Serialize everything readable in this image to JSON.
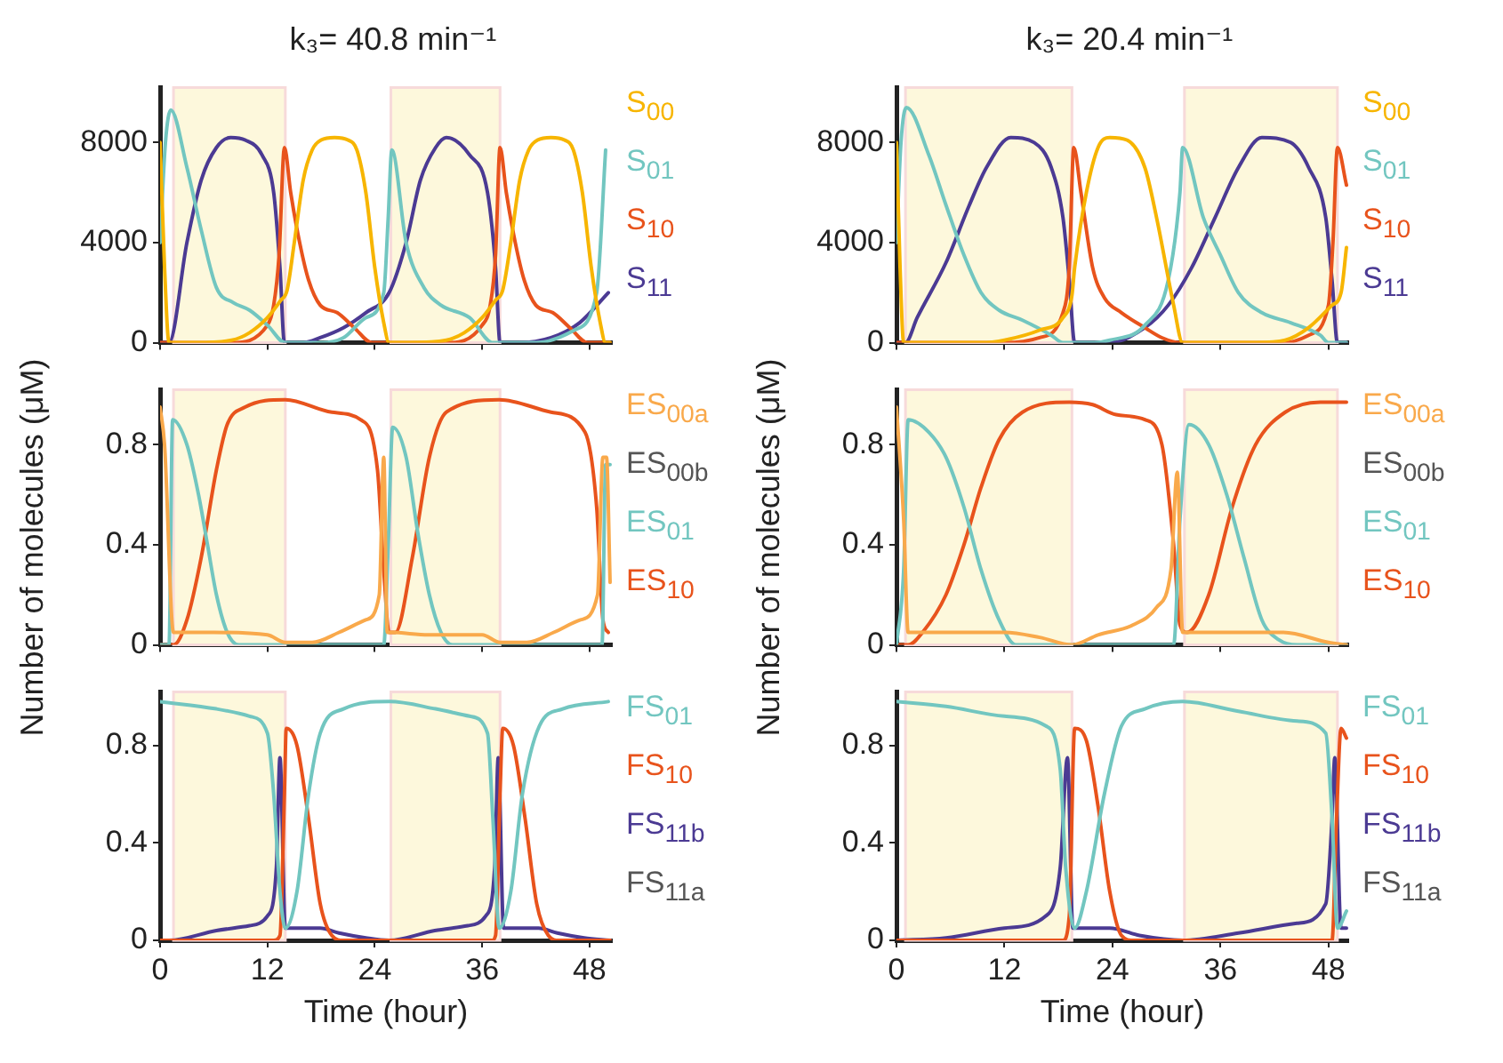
{
  "chart_data": [
    {
      "type": "line",
      "title": "k₃= 40.8 min⁻¹",
      "xlim": [
        0,
        50.5
      ],
      "xticks": [
        0,
        12,
        24,
        36,
        48
      ],
      "ylim": [
        0,
        10200
      ],
      "yticks": [
        0,
        4000,
        8000
      ],
      "tick_labels": "y",
      "grid": false,
      "legend": "right",
      "marker": "none",
      "bands": [
        {
          "axis": "x",
          "from": 1.5,
          "to": 14,
          "color": "#fdf8dc"
        },
        {
          "axis": "x",
          "from": 25.8,
          "to": 38,
          "color": "#fdf8dc"
        }
      ],
      "series": [
        {
          "name": "S$_{00}$",
          "color": "#f7b500",
          "x": [
            0,
            0.5,
            1,
            4,
            8,
            10,
            12,
            13.5,
            14.2,
            15,
            16,
            17,
            18,
            19.5,
            21,
            22,
            23,
            24,
            25,
            25.6,
            28,
            32,
            34,
            36,
            37.5,
            38.3,
            39.2,
            40.2,
            41.2,
            42.2,
            43.7,
            45.2,
            46.2,
            47.2,
            48.2,
            49.2,
            49.8,
            50.3
          ],
          "values": [
            8000,
            3000,
            0,
            0,
            100,
            400,
            1000,
            1700,
            2100,
            4000,
            6500,
            7700,
            8100,
            8200,
            8100,
            7700,
            6000,
            3000,
            800,
            0,
            0,
            100,
            400,
            1000,
            1700,
            2100,
            4000,
            6500,
            7700,
            8100,
            8200,
            8100,
            7700,
            6000,
            3000,
            800,
            0,
            0
          ]
        },
        {
          "name": "S$_{01}$",
          "color": "#72c6c0",
          "x": [
            0,
            0.6,
            1.2,
            3,
            4.6,
            6.3,
            8.2,
            10,
            12,
            14,
            18,
            20.5,
            23,
            25,
            25.5,
            25.9,
            27.5,
            29.5,
            31.4,
            34.6,
            37.2,
            42,
            46.3,
            48.8,
            49.8
          ],
          "values": [
            4000,
            8000,
            9300,
            7000,
            4500,
            2200,
            1600,
            1300,
            700,
            0,
            0,
            200,
            1000,
            2000,
            5000,
            7700,
            4000,
            2200,
            1500,
            1000,
            0,
            0,
            500,
            2000,
            7700
          ]
        },
        {
          "name": "S$_{10}$",
          "color": "#e8531c",
          "x": [
            0,
            8,
            12,
            12.7,
            13.3,
            13.9,
            14.6,
            15.6,
            16.6,
            17.9,
            19.8,
            21.7,
            23.7,
            32,
            36,
            36.9,
            37.5,
            38,
            38.7,
            39.7,
            40.7,
            42,
            43.9,
            45.8,
            47.8,
            50.3
          ],
          "values": [
            0,
            0,
            700,
            1500,
            3500,
            7800,
            6000,
            4000,
            2500,
            1500,
            1200,
            600,
            0,
            0,
            700,
            1500,
            3500,
            7800,
            6000,
            4000,
            2500,
            1500,
            1200,
            600,
            0,
            0
          ]
        },
        {
          "name": "S$_{11}$",
          "color": "#4b3a93",
          "x": [
            0,
            1,
            3,
            4.6,
            6.3,
            7.9,
            9.5,
            11.4,
            12.7,
            13.4,
            13.9,
            16,
            17.9,
            20.5,
            23,
            25.6,
            27.5,
            29.1,
            30.8,
            32,
            34.6,
            36.6,
            37.5,
            38,
            40,
            43.7,
            46.9,
            50.1
          ],
          "values": [
            0,
            0,
            4000,
            6500,
            7800,
            8200,
            8100,
            7500,
            6000,
            3000,
            0,
            0,
            200,
            600,
            1200,
            2000,
            4000,
            6500,
            7800,
            8200,
            7500,
            6000,
            3000,
            0,
            0,
            200,
            800,
            2000
          ]
        }
      ]
    },
    {
      "type": "line",
      "ylabel": "Number of molecules  (μM)",
      "xlim": [
        0,
        50.5
      ],
      "xticks": [
        0,
        12,
        24,
        36,
        48
      ],
      "ylim": [
        0,
        1.02
      ],
      "yticks": [
        0,
        0.4,
        0.8
      ],
      "tick_labels": "y",
      "grid": false,
      "legend": "right",
      "marker": "none",
      "bands": [
        {
          "axis": "x",
          "from": 1.5,
          "to": 14,
          "color": "#fdf8dc"
        },
        {
          "axis": "x",
          "from": 25.8,
          "to": 38,
          "color": "#fdf8dc"
        }
      ],
      "series": [
        {
          "name": "ES$_{00a}$",
          "color": "#f9a94b",
          "x": [
            0,
            0.5,
            1.5,
            6,
            12,
            14,
            17,
            20,
            23,
            24.5,
            25,
            25.4,
            25.8,
            30,
            36,
            38,
            41,
            44,
            47,
            48.9,
            49.5,
            49.9,
            50.3
          ],
          "values": [
            0.95,
            0.8,
            0.05,
            0.05,
            0.04,
            0.01,
            0.01,
            0.05,
            0.1,
            0.2,
            0.75,
            0.05,
            0.05,
            0.04,
            0.04,
            0.01,
            0.01,
            0.05,
            0.1,
            0.2,
            0.75,
            0.75,
            0.25
          ]
        },
        {
          "name": "ES$_{00b}$",
          "color": "#555555"
        },
        {
          "name": "ES$_{01}$",
          "color": "#72c6c0",
          "x": [
            0,
            1,
            1.4,
            3,
            4.3,
            5.3,
            6.3,
            7.5,
            8.8,
            25,
            25.5,
            26,
            27.5,
            28.8,
            30.1,
            31.4,
            32.7,
            49.4,
            49.8,
            50.3
          ],
          "values": [
            0,
            0,
            0.9,
            0.8,
            0.6,
            0.4,
            0.2,
            0.05,
            0,
            0,
            0.4,
            0.87,
            0.75,
            0.45,
            0.2,
            0.05,
            0,
            0,
            0.72,
            0.72
          ]
        },
        {
          "name": "ES$_{10}$",
          "color": "#e8531c",
          "x": [
            0,
            1.5,
            3,
            4.6,
            6.3,
            7.5,
            9.5,
            14,
            19.2,
            22.4,
            24.3,
            25,
            25.6,
            26.3,
            28.2,
            30.1,
            32,
            37.9,
            43.7,
            47.5,
            48.8,
            49.5,
            50.1
          ],
          "values": [
            0,
            0,
            0.1,
            0.35,
            0.7,
            0.88,
            0.95,
            0.98,
            0.93,
            0.9,
            0.7,
            0.3,
            0.05,
            0.05,
            0.35,
            0.75,
            0.93,
            0.98,
            0.93,
            0.85,
            0.55,
            0.1,
            0.05
          ]
        }
      ]
    },
    {
      "type": "line",
      "xlabel": "Time (hour)",
      "xlim": [
        0,
        50.5
      ],
      "xticks": [
        0,
        12,
        24,
        36,
        48
      ],
      "ylim": [
        0,
        1.02
      ],
      "yticks": [
        0,
        0.4,
        0.8
      ],
      "grid": false,
      "legend": "right",
      "marker": "none",
      "bands": [
        {
          "axis": "x",
          "from": 1.5,
          "to": 14,
          "color": "#fdf8dc"
        },
        {
          "axis": "x",
          "from": 25.8,
          "to": 38,
          "color": "#fdf8dc"
        }
      ],
      "series": [
        {
          "name": "FS$_{01}$",
          "color": "#72c6c0",
          "x": [
            0,
            6.3,
            10,
            12,
            12.7,
            13.4,
            14,
            15.3,
            16.6,
            17.9,
            20.5,
            25.6,
            30.8,
            34.6,
            36.6,
            37.2,
            37.9,
            39.2,
            40.5,
            42.4,
            45,
            50.1
          ],
          "values": [
            0.98,
            0.95,
            0.92,
            0.85,
            0.6,
            0.2,
            0.05,
            0.2,
            0.6,
            0.85,
            0.95,
            0.98,
            0.95,
            0.92,
            0.85,
            0.5,
            0.05,
            0.2,
            0.6,
            0.88,
            0.95,
            0.98
          ]
        },
        {
          "name": "FS$_{10}$",
          "color": "#e8531c",
          "x": [
            0,
            12.7,
            13.4,
            13.9,
            14.1,
            15.3,
            16.6,
            17.9,
            19.2,
            20.5,
            37.1,
            37.5,
            38,
            38.3,
            39.5,
            40.8,
            42.1,
            43.4,
            44.6,
            50.3
          ],
          "values": [
            0,
            0,
            0.02,
            0.6,
            0.87,
            0.8,
            0.5,
            0.15,
            0.02,
            0,
            0,
            0.02,
            0.6,
            0.87,
            0.8,
            0.5,
            0.15,
            0.02,
            0,
            0
          ]
        },
        {
          "name": "FS$_{11b}$",
          "color": "#4b3a93",
          "x": [
            0,
            1,
            6.3,
            10,
            12,
            13,
            13.4,
            14,
            17.9,
            20,
            23,
            25.6,
            30.7,
            34.4,
            36.4,
            37.4,
            37.8,
            38.4,
            42.3,
            44.4,
            47.4,
            50.3
          ],
          "values": [
            0,
            0,
            0.04,
            0.06,
            0.1,
            0.3,
            0.75,
            0.05,
            0.05,
            0.03,
            0.01,
            0,
            0.04,
            0.06,
            0.1,
            0.3,
            0.75,
            0.05,
            0.05,
            0.03,
            0.01,
            0
          ]
        },
        {
          "name": "FS$_{11a}$",
          "color": "#555555"
        }
      ]
    },
    {
      "type": "line",
      "title": "k₃= 20.4 min⁻¹",
      "xlim": [
        0,
        50.2
      ],
      "xticks": [
        0,
        12,
        24,
        36,
        48
      ],
      "ylim": [
        0,
        10200
      ],
      "yticks": [
        0,
        4000,
        8000
      ],
      "tick_labels": "y",
      "grid": false,
      "legend": "right",
      "marker": "none",
      "bands": [
        {
          "axis": "x",
          "from": 1,
          "to": 19.5,
          "color": "#fdf8dc"
        },
        {
          "axis": "x",
          "from": 32,
          "to": 49,
          "color": "#fdf8dc"
        }
      ],
      "series": [
        {
          "name": "S$_{00}$",
          "color": "#f7b500",
          "x": [
            0,
            0.4,
            0.8,
            10,
            12,
            15.9,
            18.5,
            19.5,
            19.8,
            21.1,
            22.4,
            23.7,
            25.6,
            27.6,
            28.9,
            30.8,
            31.8,
            40,
            43.2,
            45.8,
            48.4,
            49.4,
            50
          ],
          "values": [
            8000,
            3000,
            0,
            0,
            100,
            500,
            1000,
            1900,
            3000,
            6000,
            7800,
            8200,
            8100,
            7000,
            5000,
            1500,
            0,
            0,
            100,
            600,
            1500,
            2000,
            3800
          ]
        },
        {
          "name": "S$_{01}$",
          "color": "#72c6c0",
          "x": [
            0,
            0.5,
            1.1,
            3.6,
            5.5,
            7.5,
            9.4,
            11.4,
            14,
            17.2,
            18.5,
            22,
            23.7,
            27.6,
            30.2,
            31.5,
            31.8,
            34.1,
            36,
            38,
            40.6,
            43.8,
            47.1,
            48,
            50
          ],
          "values": [
            4000,
            8000,
            9400,
            7500,
            5500,
            3500,
            2000,
            1300,
            900,
            300,
            0,
            0,
            100,
            700,
            2500,
            6000,
            7800,
            5000,
            3500,
            2000,
            1200,
            800,
            300,
            0,
            0
          ]
        },
        {
          "name": "S$_{10}$",
          "color": "#e8531c",
          "x": [
            0,
            12,
            15.9,
            18.5,
            19.2,
            19.7,
            20.5,
            21.8,
            23.1,
            25,
            27.6,
            29.5,
            31.5,
            43,
            45.8,
            48,
            48.5,
            49,
            50
          ],
          "values": [
            0,
            0,
            200,
            1200,
            3000,
            7800,
            6000,
            3000,
            1800,
            1200,
            600,
            200,
            0,
            0,
            300,
            1500,
            4000,
            7800,
            6300
          ]
        },
        {
          "name": "S$_{11}$",
          "color": "#4b3a93",
          "x": [
            0,
            1,
            2.3,
            5.5,
            8.1,
            10,
            12.7,
            15.3,
            17.2,
            18.5,
            19.2,
            19.8,
            23.7,
            27.6,
            30.2,
            32.8,
            35.4,
            38,
            40.6,
            43.8,
            45.8,
            47.7,
            48.4,
            49,
            50
          ],
          "values": [
            0,
            0,
            1000,
            3200,
            5500,
            7000,
            8200,
            8000,
            7000,
            5000,
            2500,
            0,
            0,
            600,
            1500,
            3000,
            5000,
            7000,
            8200,
            8000,
            7000,
            5000,
            2500,
            0,
            0
          ]
        }
      ]
    },
    {
      "type": "line",
      "ylabel": "Number of molecules  (μM)",
      "xlim": [
        0,
        50.2
      ],
      "xticks": [
        0,
        12,
        24,
        36,
        48
      ],
      "ylim": [
        0,
        1.02
      ],
      "yticks": [
        0,
        0.4,
        0.8
      ],
      "tick_labels": "y",
      "grid": false,
      "legend": "right",
      "marker": "none",
      "bands": [
        {
          "axis": "x",
          "from": 1,
          "to": 19.5,
          "color": "#fdf8dc"
        },
        {
          "axis": "x",
          "from": 32,
          "to": 49,
          "color": "#fdf8dc"
        }
      ],
      "series": [
        {
          "name": "ES$_{00a}$",
          "color": "#f9a94b",
          "x": [
            0,
            0.8,
            1.3,
            12,
            15.9,
            19.5,
            22.4,
            26.3,
            28.9,
            30.5,
            31.2,
            31.8,
            43,
            48,
            50
          ],
          "values": [
            0.95,
            0.5,
            0.05,
            0.05,
            0.03,
            0,
            0.04,
            0.08,
            0.15,
            0.3,
            0.69,
            0.05,
            0.05,
            0.01,
            0
          ]
        },
        {
          "name": "ES$_{00b}$",
          "color": "#555555"
        },
        {
          "name": "ES$_{01}$",
          "color": "#72c6c0",
          "x": [
            0,
            0.8,
            1.3,
            3.6,
            5.5,
            7.5,
            9.4,
            11.4,
            13.3,
            30.8,
            31.5,
            32.5,
            34.7,
            36.7,
            38.6,
            40.6,
            42.5,
            44.5,
            50
          ],
          "values": [
            0,
            0.3,
            0.9,
            0.85,
            0.75,
            0.55,
            0.3,
            0.1,
            0,
            0,
            0.5,
            0.88,
            0.8,
            0.6,
            0.35,
            0.1,
            0.02,
            0,
            0
          ]
        },
        {
          "name": "ES$_{10}$",
          "color": "#e8531c",
          "x": [
            0,
            1.3,
            2.9,
            5.5,
            7.5,
            9.4,
            11.4,
            14,
            19.2,
            21.8,
            24.4,
            27.6,
            29.5,
            30.8,
            31.5,
            32.3,
            34.7,
            37.3,
            39.9,
            43.2,
            47.1,
            50
          ],
          "values": [
            0,
            0,
            0.05,
            0.2,
            0.4,
            0.63,
            0.82,
            0.93,
            0.97,
            0.96,
            0.92,
            0.9,
            0.8,
            0.4,
            0.08,
            0.05,
            0.2,
            0.55,
            0.8,
            0.93,
            0.97,
            0.97
          ]
        }
      ]
    },
    {
      "type": "line",
      "xlabel": "Time (hour)",
      "xlim": [
        0,
        50.2
      ],
      "xticks": [
        0,
        12,
        24,
        36,
        48
      ],
      "ylim": [
        0,
        1.02
      ],
      "yticks": [
        0,
        0.4,
        0.8
      ],
      "grid": false,
      "legend": "right",
      "marker": "none",
      "bands": [
        {
          "axis": "x",
          "from": 1,
          "to": 19.5,
          "color": "#fdf8dc"
        },
        {
          "axis": "x",
          "from": 32,
          "to": 49,
          "color": "#fdf8dc"
        }
      ],
      "series": [
        {
          "name": "FS$_{01}$",
          "color": "#72c6c0",
          "x": [
            0,
            5.5,
            12,
            16.6,
            18.2,
            18.8,
            19.8,
            21.1,
            23.1,
            25,
            27.6,
            31.8,
            38,
            44.5,
            47.7,
            48.4,
            49,
            50
          ],
          "values": [
            0.98,
            0.96,
            0.92,
            0.88,
            0.7,
            0.3,
            0.05,
            0.2,
            0.6,
            0.88,
            0.95,
            0.98,
            0.94,
            0.9,
            0.85,
            0.5,
            0.05,
            0.12
          ]
        },
        {
          "name": "FS$_{10}$",
          "color": "#e8531c",
          "x": [
            0,
            18.5,
            19.2,
            19.8,
            21.1,
            22.4,
            23.7,
            25,
            26.3,
            48.4,
            48.9,
            49.4,
            50
          ],
          "values": [
            0,
            0,
            0.1,
            0.87,
            0.82,
            0.55,
            0.2,
            0.02,
            0,
            0,
            0.5,
            0.87,
            0.83
          ]
        },
        {
          "name": "FS$_{11b}$",
          "color": "#4b3a93",
          "x": [
            0,
            5.5,
            12,
            16.6,
            18.2,
            19,
            19.6,
            23.7,
            27,
            31.8,
            38,
            44.5,
            47.7,
            48.4,
            48.7,
            49.4,
            50
          ],
          "values": [
            0,
            0.01,
            0.05,
            0.1,
            0.3,
            0.75,
            0.05,
            0.05,
            0.02,
            0,
            0.03,
            0.07,
            0.15,
            0.5,
            0.75,
            0.05,
            0.05
          ]
        },
        {
          "name": "FS$_{11a}$",
          "color": "#555555"
        }
      ]
    }
  ]
}
